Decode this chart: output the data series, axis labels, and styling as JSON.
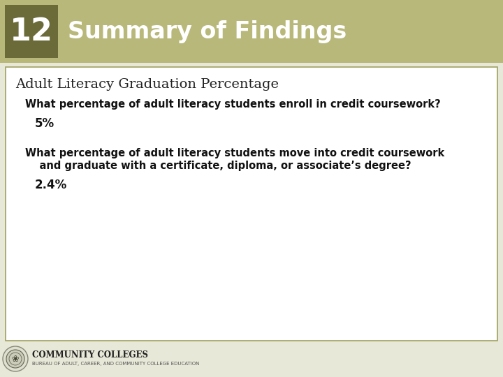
{
  "slide_bg": "#e8e8d8",
  "header_bg": "#b8b87a",
  "header_number_bg": "#6b6b3a",
  "header_number": "12",
  "header_title": "Summary of Findings",
  "header_number_color": "#ffffff",
  "header_title_color": "#ffffff",
  "content_bg": "#ffffff",
  "content_border_color": "#a0a060",
  "section_title": "Adult Literacy Graduation Percentage",
  "section_title_color": "#222222",
  "q1": "What percentage of adult literacy students enroll in credit coursework?",
  "a1": "5%",
  "q2_line1": "What percentage of adult literacy students move into credit coursework",
  "q2_line2": "    and graduate with a certificate, diploma, or associate’s degree?",
  "a2": "2.4%",
  "question_color": "#111111",
  "answer_color": "#111111",
  "footer_text": "COMMUNITY COLLEGES",
  "footer_sub": "BUREAU OF ADULT, CAREER, AND COMMUNITY COLLEGE EDUCATION"
}
